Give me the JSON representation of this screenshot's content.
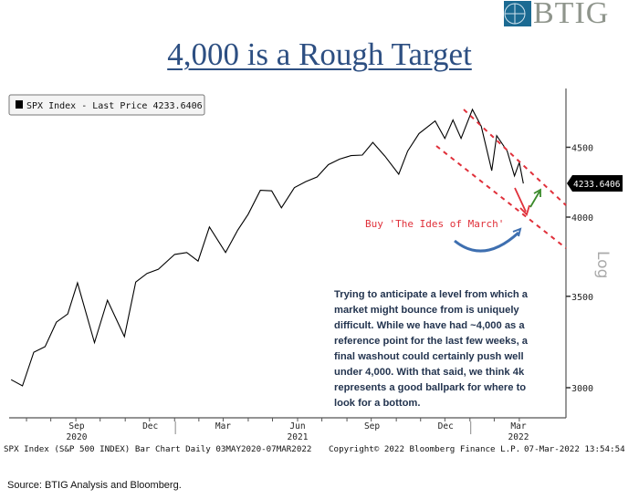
{
  "logo": {
    "text": "BTIG",
    "color": "#1b6a92"
  },
  "title": "4,000 is a Rough Target",
  "chart_data": {
    "type": "line",
    "legend": "SPX Index - Last Price 4233.6406",
    "last_price_tag": "4233.6406",
    "yscale": "log",
    "ylabel": "Log",
    "ylim": [
      2990,
      4900
    ],
    "yticks": [
      3000,
      3500,
      4000,
      4500
    ],
    "ytick_labels": [
      "3000",
      "3500",
      "4000",
      "4500"
    ],
    "xlim": [
      "2020-06-10",
      "2022-03-31"
    ],
    "xticks": [
      {
        "date": "2020-09-01",
        "label": "Sep"
      },
      {
        "date": "2020-12-01",
        "label": "Dec"
      },
      {
        "date": "2021-03-01",
        "label": "Mar"
      },
      {
        "date": "2021-06-01",
        "label": "Jun"
      },
      {
        "date": "2021-09-01",
        "label": "Sep"
      },
      {
        "date": "2021-12-01",
        "label": "Dec"
      },
      {
        "date": "2022-03-01",
        "label": "Mar"
      }
    ],
    "year_labels": [
      {
        "date": "2020-09-01",
        "label": "2020"
      },
      {
        "date": "2021-06-01",
        "label": "2021"
      },
      {
        "date": "2022-03-01",
        "label": "2022"
      }
    ],
    "series": [
      {
        "name": "SPX Index",
        "color": "#000000",
        "x": [
          "2020-06-12",
          "2020-06-26",
          "2020-07-10",
          "2020-07-24",
          "2020-08-07",
          "2020-08-21",
          "2020-09-02",
          "2020-09-23",
          "2020-10-09",
          "2020-10-30",
          "2020-11-13",
          "2020-11-27",
          "2020-12-11",
          "2020-12-31",
          "2021-01-15",
          "2021-01-29",
          "2021-02-12",
          "2021-03-04",
          "2021-03-19",
          "2021-04-01",
          "2021-04-16",
          "2021-04-30",
          "2021-05-12",
          "2021-05-28",
          "2021-06-11",
          "2021-06-25",
          "2021-07-09",
          "2021-07-23",
          "2021-08-06",
          "2021-08-20",
          "2021-09-02",
          "2021-09-17",
          "2021-10-04",
          "2021-10-15",
          "2021-10-29",
          "2021-11-18",
          "2021-11-30",
          "2021-12-10",
          "2021-12-20",
          "2022-01-03",
          "2022-01-14",
          "2022-01-27",
          "2022-02-02",
          "2022-02-15",
          "2022-02-24",
          "2022-03-02",
          "2022-03-07"
        ],
        "y": [
          3041,
          3009,
          3185,
          3215,
          3351,
          3397,
          3580,
          3237,
          3477,
          3270,
          3585,
          3638,
          3663,
          3756,
          3768,
          3714,
          3934,
          3768,
          3913,
          4020,
          4185,
          4181,
          4063,
          4204,
          4247,
          4280,
          4370,
          4411,
          4437,
          4441,
          4537,
          4433,
          4300,
          4471,
          4605,
          4704,
          4567,
          4712,
          4568,
          4796,
          4662,
          4326,
          4589,
          4471,
          4288,
          4386,
          4233.64
        ]
      }
    ],
    "annotations": {
      "callout": "Buy 'The Ides of March'",
      "callout_color": "#e0303a",
      "channel_color": "#e0303a",
      "down_arrow_color": "#e0303a",
      "up_arrow_color": "#3a8a2a",
      "curve_arrow_color": "#3e6fb0",
      "note": "Trying to anticipate a level from which a market might bounce from is uniquely difficult. While we have had ~4,000 as a reference point for the last few weeks, a final washout could certainly push well under 4,000. With that said, we think 4k represents a good ballpark for where to look for a bottom."
    },
    "footer": {
      "description": "SPX Index (S&P 500 INDEX) Bar Chart  Daily 03MAY2020-07MAR2022",
      "copyright": "Copyright© 2022 Bloomberg Finance L.P.",
      "timestamp": "07-Mar-2022 13:54:54"
    }
  },
  "source": "Source: BTIG Analysis and Bloomberg."
}
